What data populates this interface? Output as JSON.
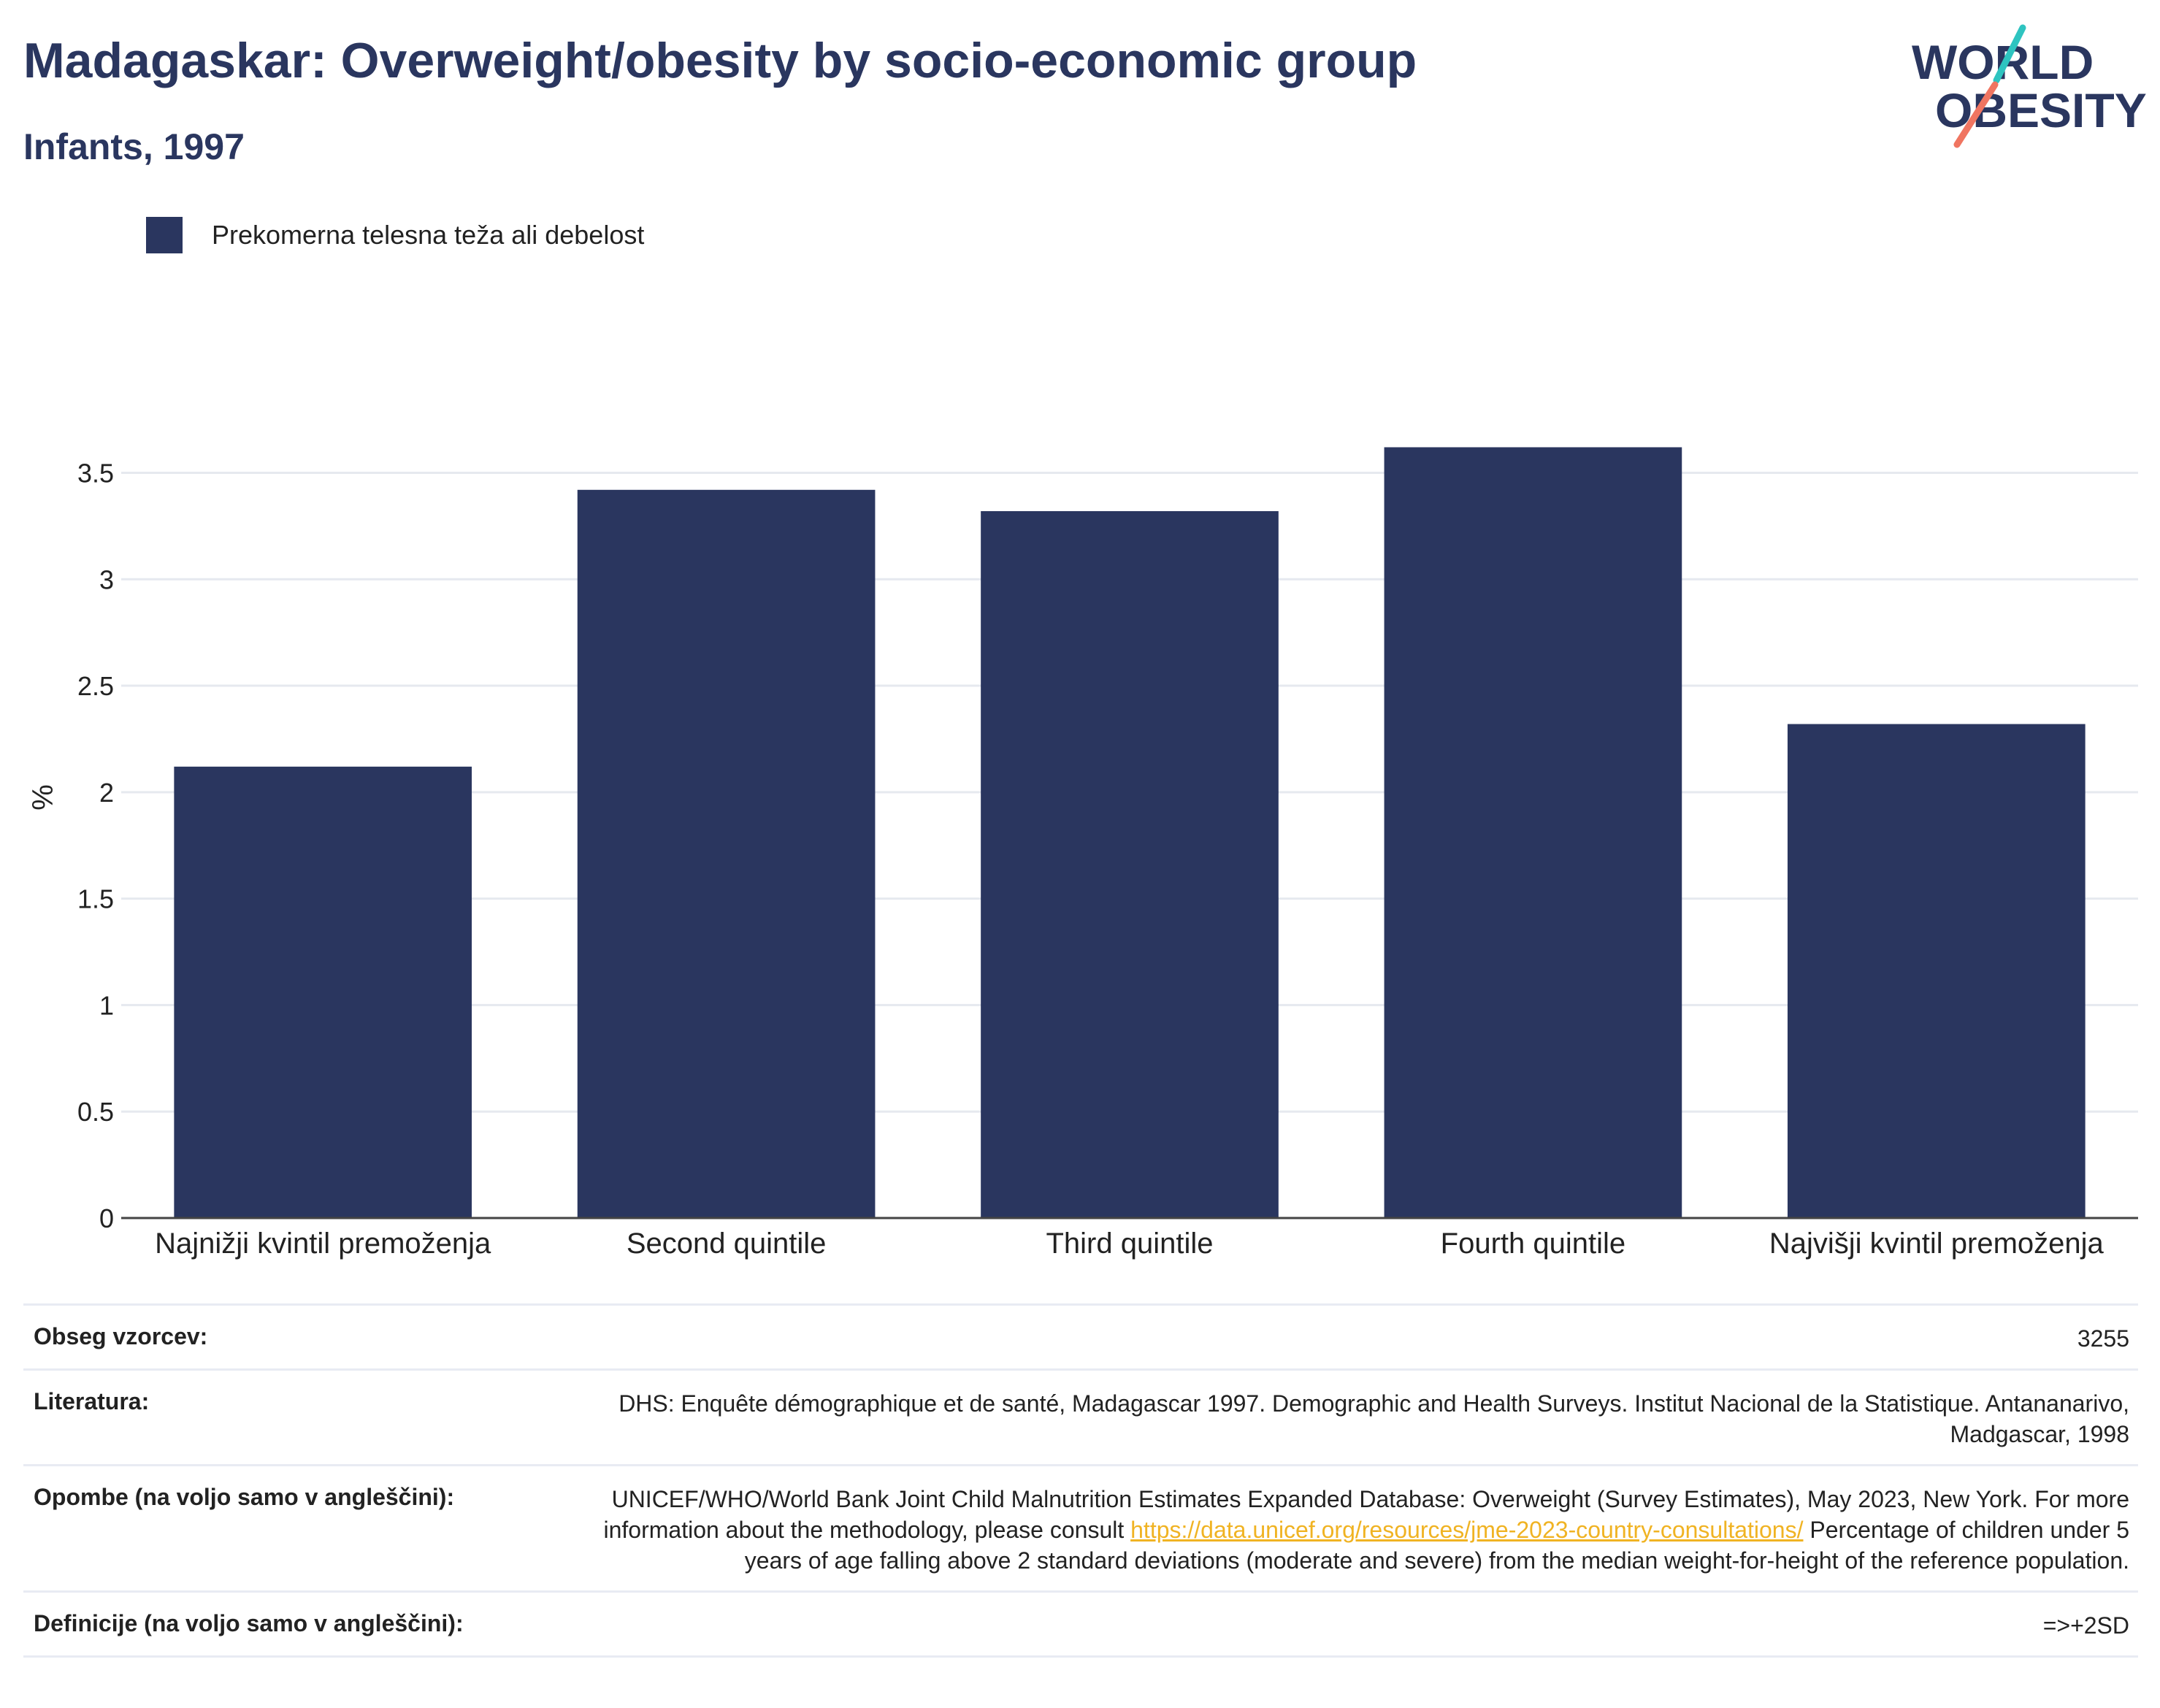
{
  "header": {
    "title": "Madagaskar: Overweight/obesity by socio-economic group",
    "subtitle": "Infants, 1997"
  },
  "logo": {
    "line1": "WORLD",
    "line2": "OBESITY"
  },
  "colors": {
    "bar": "#2a365f",
    "title": "#2a365f",
    "grid": "#e6e9ef",
    "link": "#f0b323",
    "logo_teal": "#2ec4c0",
    "logo_coral": "#f07561"
  },
  "chart_data": {
    "type": "bar",
    "categories": [
      "Najnižji kvintil premoženja",
      "Second quintile",
      "Third quintile",
      "Fourth quintile",
      "Najvišji kvintil premoženja"
    ],
    "series": [
      {
        "name": "Prekomerna telesna teža ali debelost",
        "values": [
          2.12,
          3.42,
          3.32,
          3.62,
          2.32
        ]
      }
    ],
    "ylabel": "%",
    "ylim": [
      0,
      3.8
    ],
    "yticks": [
      0,
      0.5,
      1,
      1.5,
      2,
      2.5,
      3,
      3.5
    ],
    "ytick_labels": [
      "0",
      "0.5",
      "1",
      "1.5",
      "2",
      "2.5",
      "3",
      "3.5"
    ],
    "grid": true,
    "legend_position": "top-left"
  },
  "info": {
    "sample_size": {
      "label": "Obseg vzorcev:",
      "value": "3255"
    },
    "literature": {
      "label": "Literatura:",
      "value": "DHS: Enquête démographique et de santé, Madagascar 1997. Demographic and Health Surveys. Institut Nacional de la Statistique. Antananarivo, Madgascar, 1998"
    },
    "notes": {
      "label": "Opombe (na voljo samo v angleščini):",
      "text_before": "UNICEF/WHO/World Bank Joint Child Malnutrition Estimates Expanded Database: Overweight (Survey Estimates), May 2023, New York. For more information about the methodology, please consult ",
      "link": "https://data.unicef.org/resources/jme-2023-country-consultations/",
      "text_after": " Percentage of children under 5 years of age falling above 2 standard deviations (moderate and severe) from the median weight-for-height of the reference population."
    },
    "definitions": {
      "label": "Definicije (na voljo samo v angleščini):",
      "value": "=>+2SD"
    }
  }
}
